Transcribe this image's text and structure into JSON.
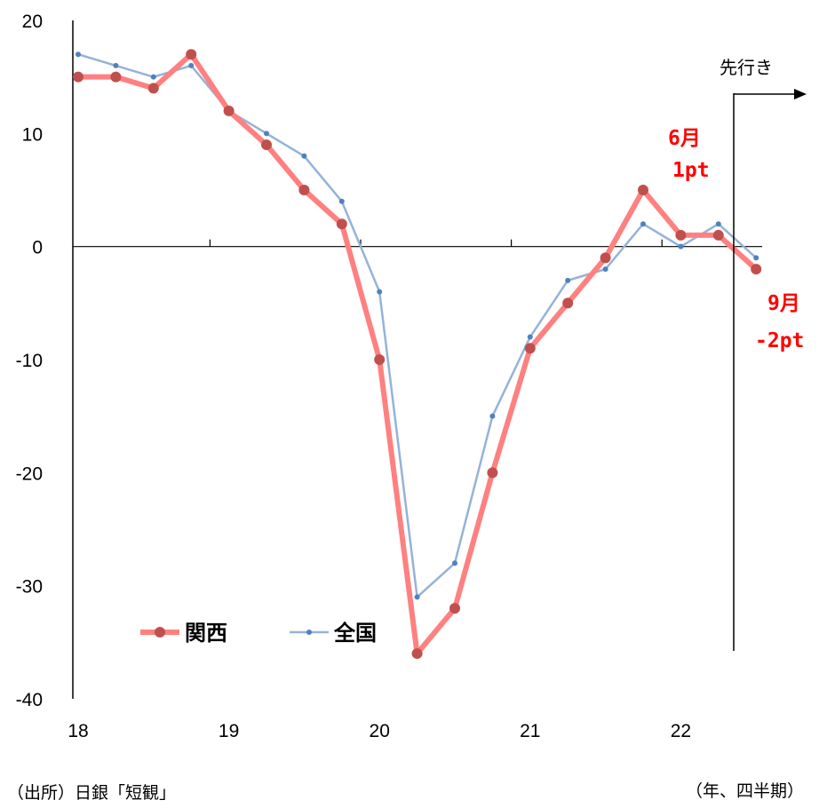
{
  "chart_data": {
    "type": "line",
    "x_labels": [
      "18",
      "19",
      "20",
      "21",
      "22"
    ],
    "quarters": [
      "18Q1",
      "18Q2",
      "18Q3",
      "18Q4",
      "19Q1",
      "19Q2",
      "19Q3",
      "19Q4",
      "20Q1",
      "20Q2",
      "20Q3",
      "20Q4",
      "21Q1",
      "21Q2",
      "21Q3",
      "21Q4",
      "22Q1",
      "22Q2",
      "22Q3"
    ],
    "ylim": [
      -40,
      20
    ],
    "yticks": [
      "20",
      "10",
      "0",
      "-10",
      "-20",
      "-30",
      "-40"
    ],
    "series": [
      {
        "name": "関西",
        "color": "#ff8080",
        "marker_color": "#c0504d",
        "values": [
          15,
          15,
          14,
          17,
          12,
          9,
          5,
          2,
          -10,
          -36,
          -32,
          -20,
          -9,
          -5,
          -1,
          5,
          1,
          1,
          -2
        ]
      },
      {
        "name": "全国",
        "color": "#95b3d7",
        "marker_color": "#4f81bd",
        "values": [
          17,
          16,
          15,
          16,
          12,
          10,
          8,
          4,
          -4,
          -31,
          -28,
          -15,
          -8,
          -3,
          -2,
          2,
          0,
          2,
          -1
        ]
      }
    ],
    "annotations": {
      "june_month": "6月",
      "june_value": "1pt",
      "sept_month": "9月",
      "sept_value": "-2pt",
      "forecast": "先行き"
    },
    "legend_position": "bottom-left"
  },
  "notes": {
    "source": "（出所）日銀「短観」",
    "unit": "（年、四半期）"
  }
}
